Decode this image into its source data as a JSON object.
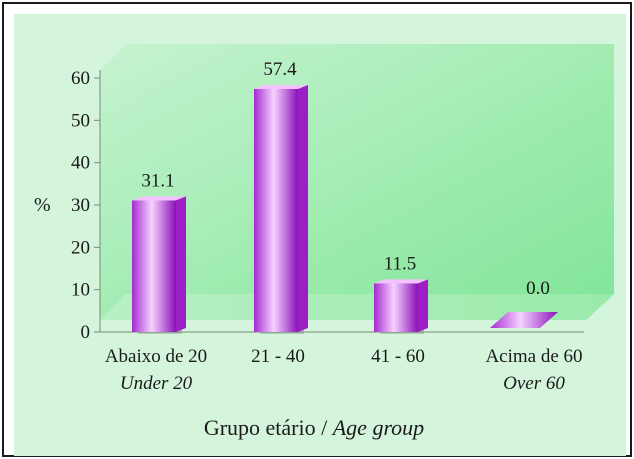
{
  "chart_data": {
    "type": "bar",
    "categories": [
      {
        "label": "Abaixo de 20",
        "sublabel": "Under 20"
      },
      {
        "label": "21 - 40",
        "sublabel": ""
      },
      {
        "label": "41 - 60",
        "sublabel": ""
      },
      {
        "label": "Acima de 60",
        "sublabel": "Over 60"
      }
    ],
    "values": [
      31.1,
      57.4,
      11.5,
      0.0
    ],
    "data_labels": [
      "31.1",
      "57.4",
      "11.5",
      "0.0"
    ],
    "ylabel": "%",
    "ylim": [
      0,
      60
    ],
    "yticks": [
      "0",
      "10",
      "20",
      "30",
      "40",
      "50",
      "60"
    ],
    "xlabel": "Grupo etário",
    "xlabel_en": "Age group",
    "xlabel_separator": " / ",
    "grid": false,
    "colors": {
      "background": "#d4f5dc",
      "wall": "#8feaa3",
      "bar_light": "#f3c2ff",
      "bar_dark": "#9b1fc4",
      "shadow": "#6d7a6f"
    }
  }
}
